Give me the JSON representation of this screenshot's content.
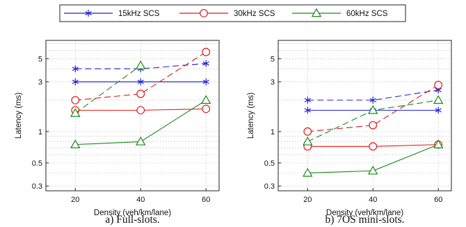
{
  "legend": [
    {
      "name": "15kHz SCS",
      "color": "#1f1fd6",
      "marker": "asterisk"
    },
    {
      "name": "30kHz SCS",
      "color": "#e01818",
      "marker": "circle"
    },
    {
      "name": "60kHz SCS",
      "color": "#178a17",
      "marker": "triangle"
    }
  ],
  "chart_data": [
    {
      "type": "line",
      "caption": "a) Full-slots.",
      "xlabel": "Density (veh/km/lane)",
      "ylabel": "Latency (ms)",
      "yscale": "log",
      "ylim": [
        0.27,
        7.5
      ],
      "xlim": [
        11,
        64
      ],
      "x": [
        20,
        40,
        60
      ],
      "x_ticks": [
        "20",
        "40",
        "60"
      ],
      "y_ticks": [
        0.3,
        0.5,
        1,
        3,
        5
      ],
      "y_tick_labels": [
        "0.3",
        "0.5",
        "1",
        "3",
        "5"
      ],
      "grid": true,
      "series": [
        {
          "name": "15kHz SCS",
          "style": "dashed",
          "values": [
            4.0,
            4.0,
            4.5
          ]
        },
        {
          "name": "15kHz SCS",
          "style": "solid",
          "values": [
            3.0,
            3.0,
            3.0
          ]
        },
        {
          "name": "30kHz SCS",
          "style": "dashed",
          "values": [
            2.0,
            2.3,
            5.8
          ]
        },
        {
          "name": "30kHz SCS",
          "style": "solid",
          "values": [
            1.6,
            1.6,
            1.65
          ]
        },
        {
          "name": "60kHz SCS",
          "style": "dashed",
          "values": [
            1.5,
            4.3,
            null
          ]
        },
        {
          "name": "60kHz SCS",
          "style": "solid",
          "values": [
            0.75,
            0.8,
            2.0
          ]
        }
      ]
    },
    {
      "type": "line",
      "caption": "b) 7OS mini-slots.",
      "xlabel": "Density (veh/km/lane)",
      "ylabel": "Latency (ms)",
      "yscale": "log",
      "ylim": [
        0.27,
        7.5
      ],
      "xlim": [
        11,
        64
      ],
      "x": [
        20,
        40,
        60
      ],
      "x_ticks": [
        "20",
        "40",
        "60"
      ],
      "y_ticks": [
        0.3,
        0.5,
        1,
        3,
        5
      ],
      "y_tick_labels": [
        "0.3",
        "0.5",
        "1",
        "3",
        "5"
      ],
      "grid": true,
      "series": [
        {
          "name": "15kHz SCS",
          "style": "dashed",
          "values": [
            2.0,
            2.0,
            2.5
          ]
        },
        {
          "name": "15kHz SCS",
          "style": "solid",
          "values": [
            1.6,
            1.6,
            1.6
          ]
        },
        {
          "name": "30kHz SCS",
          "style": "dashed",
          "values": [
            1.0,
            1.15,
            2.8
          ]
        },
        {
          "name": "30kHz SCS",
          "style": "solid",
          "values": [
            0.72,
            0.72,
            0.75
          ]
        },
        {
          "name": "60kHz SCS",
          "style": "dashed",
          "values": [
            0.8,
            1.6,
            2.0
          ]
        },
        {
          "name": "60kHz SCS",
          "style": "solid",
          "values": [
            0.4,
            0.42,
            0.75
          ]
        }
      ]
    }
  ]
}
